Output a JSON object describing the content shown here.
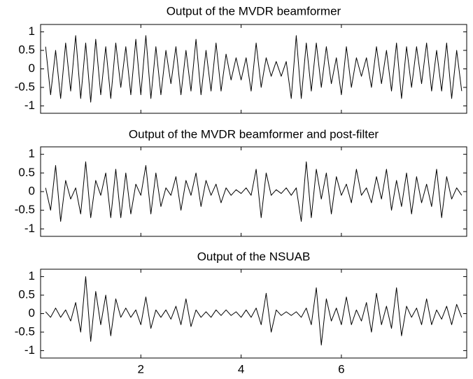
{
  "chart_data": [
    {
      "type": "line",
      "title": "Output of the MVDR beamformer",
      "x": [
        0.1,
        0.2,
        0.3,
        0.4,
        0.5,
        0.6,
        0.7,
        0.8,
        0.9,
        1.0,
        1.1,
        1.2,
        1.3,
        1.4,
        1.5,
        1.6,
        1.7,
        1.8,
        1.9,
        2.0,
        2.1,
        2.2,
        2.3,
        2.4,
        2.5,
        2.6,
        2.7,
        2.8,
        2.9,
        3.0,
        3.1,
        3.2,
        3.3,
        3.4,
        3.5,
        3.6,
        3.7,
        3.8,
        3.9,
        4.0,
        4.1,
        4.2,
        4.3,
        4.4,
        4.5,
        4.6,
        4.7,
        4.8,
        4.9,
        5.0,
        5.1,
        5.2,
        5.3,
        5.4,
        5.5,
        5.6,
        5.7,
        5.8,
        5.9,
        6.0,
        6.1,
        6.2,
        6.3,
        6.4,
        6.5,
        6.6,
        6.7,
        6.8,
        6.9,
        7.0,
        7.1,
        7.2,
        7.3,
        7.4,
        7.5,
        7.6,
        7.7,
        7.8,
        7.9,
        8.0,
        8.1,
        8.2,
        8.3,
        8.4
      ],
      "series": [
        {
          "color": "#000000",
          "values": [
            0.6,
            -0.7,
            0.5,
            -0.8,
            0.7,
            -0.6,
            0.9,
            -0.8,
            0.7,
            -0.9,
            0.8,
            -0.7,
            0.6,
            -0.8,
            0.7,
            -0.5,
            0.6,
            -0.7,
            0.8,
            -0.7,
            0.9,
            -0.8,
            0.6,
            -0.7,
            0.5,
            -0.4,
            0.6,
            -0.7,
            0.5,
            -0.6,
            0.8,
            -0.7,
            0.5,
            -0.6,
            0.7,
            -0.6,
            0.4,
            -0.3,
            0.3,
            -0.3,
            0.3,
            -0.6,
            0.7,
            -0.5,
            0.3,
            -0.2,
            0.2,
            -0.2,
            0.2,
            -0.8,
            0.9,
            -0.8,
            0.7,
            -0.6,
            0.7,
            -0.5,
            0.6,
            -0.4,
            0.3,
            -0.7,
            0.6,
            -0.5,
            0.3,
            -0.2,
            0.3,
            -0.5,
            0.6,
            -0.4,
            0.5,
            -0.6,
            0.7,
            -0.8,
            0.6,
            -0.5,
            0.6,
            -0.4,
            0.7,
            -0.6,
            0.5,
            -0.6,
            0.7,
            -0.8,
            0.5,
            -0.6
          ]
        }
      ],
      "xlim": [
        0,
        8.5
      ],
      "xticks": [
        2,
        4,
        6
      ],
      "ylim": [
        -1.2,
        1.2
      ],
      "yticks": [
        -1,
        -0.5,
        0,
        0.5,
        1
      ]
    },
    {
      "type": "line",
      "title": "Output of the MVDR beamformer and post-filter",
      "x": [
        0.1,
        0.2,
        0.3,
        0.4,
        0.5,
        0.6,
        0.7,
        0.8,
        0.9,
        1.0,
        1.1,
        1.2,
        1.3,
        1.4,
        1.5,
        1.6,
        1.7,
        1.8,
        1.9,
        2.0,
        2.1,
        2.2,
        2.3,
        2.4,
        2.5,
        2.6,
        2.7,
        2.8,
        2.9,
        3.0,
        3.1,
        3.2,
        3.3,
        3.4,
        3.5,
        3.6,
        3.7,
        3.8,
        3.9,
        4.0,
        4.1,
        4.2,
        4.3,
        4.4,
        4.5,
        4.6,
        4.7,
        4.8,
        4.9,
        5.0,
        5.1,
        5.2,
        5.3,
        5.4,
        5.5,
        5.6,
        5.7,
        5.8,
        5.9,
        6.0,
        6.1,
        6.2,
        6.3,
        6.4,
        6.5,
        6.6,
        6.7,
        6.8,
        6.9,
        7.0,
        7.1,
        7.2,
        7.3,
        7.4,
        7.5,
        7.6,
        7.7,
        7.8,
        7.9,
        8.0,
        8.1,
        8.2,
        8.3,
        8.4
      ],
      "series": [
        {
          "color": "#000000",
          "values": [
            0.1,
            -0.5,
            0.7,
            -0.8,
            0.3,
            -0.2,
            0.1,
            -0.6,
            0.8,
            -0.7,
            0.3,
            -0.1,
            0.5,
            -0.7,
            0.6,
            -0.7,
            0.5,
            -0.6,
            0.2,
            -0.1,
            0.7,
            -0.6,
            0.5,
            -0.4,
            0.1,
            -0.1,
            0.4,
            -0.5,
            0.3,
            -0.1,
            0.5,
            -0.4,
            0.3,
            -0.1,
            0.2,
            -0.3,
            0.1,
            -0.1,
            0.05,
            -0.05,
            0.1,
            -0.1,
            0.6,
            -0.7,
            0.5,
            -0.1,
            0.05,
            -0.05,
            0.1,
            -0.1,
            0.1,
            -0.8,
            0.8,
            -0.7,
            0.6,
            -0.2,
            0.5,
            -0.6,
            0.4,
            -0.1,
            0.2,
            -0.3,
            0.6,
            -0.1,
            0.1,
            -0.3,
            0.4,
            -0.2,
            0.6,
            -0.5,
            0.3,
            -0.4,
            0.5,
            -0.6,
            0.4,
            -0.3,
            0.2,
            -0.4,
            0.6,
            -0.7,
            0.4,
            -0.2,
            0.1,
            -0.1
          ]
        }
      ],
      "xlim": [
        0,
        8.5
      ],
      "xticks": [
        2,
        4,
        6
      ],
      "ylim": [
        -1.2,
        1.2
      ],
      "yticks": [
        -1,
        -0.5,
        0,
        0.5,
        1
      ]
    },
    {
      "type": "line",
      "title": "Output of the NSUAB",
      "x": [
        0.1,
        0.2,
        0.3,
        0.4,
        0.5,
        0.6,
        0.7,
        0.8,
        0.9,
        1.0,
        1.1,
        1.2,
        1.3,
        1.4,
        1.5,
        1.6,
        1.7,
        1.8,
        1.9,
        2.0,
        2.1,
        2.2,
        2.3,
        2.4,
        2.5,
        2.6,
        2.7,
        2.8,
        2.9,
        3.0,
        3.1,
        3.2,
        3.3,
        3.4,
        3.5,
        3.6,
        3.7,
        3.8,
        3.9,
        4.0,
        4.1,
        4.2,
        4.3,
        4.4,
        4.5,
        4.6,
        4.7,
        4.8,
        4.9,
        5.0,
        5.1,
        5.2,
        5.3,
        5.4,
        5.5,
        5.6,
        5.7,
        5.8,
        5.9,
        6.0,
        6.1,
        6.2,
        6.3,
        6.4,
        6.5,
        6.6,
        6.7,
        6.8,
        6.9,
        7.0,
        7.1,
        7.2,
        7.3,
        7.4,
        7.5,
        7.6,
        7.7,
        7.8,
        7.9,
        8.0,
        8.1,
        8.2,
        8.3,
        8.4
      ],
      "series": [
        {
          "color": "#000000",
          "values": [
            0.05,
            -0.1,
            0.15,
            -0.1,
            0.1,
            -0.2,
            0.3,
            -0.5,
            1.0,
            -0.75,
            0.6,
            -0.3,
            0.5,
            -0.6,
            0.4,
            -0.1,
            0.15,
            -0.1,
            0.1,
            -0.3,
            0.45,
            -0.4,
            0.1,
            -0.1,
            0.1,
            -0.15,
            0.2,
            -0.3,
            0.4,
            -0.35,
            0.1,
            -0.1,
            0.05,
            -0.1,
            0.1,
            -0.05,
            0.1,
            -0.05,
            0.05,
            -0.1,
            0.1,
            -0.1,
            0.15,
            -0.3,
            0.55,
            -0.5,
            0.1,
            -0.05,
            0.05,
            -0.05,
            0.05,
            -0.1,
            0.15,
            -0.3,
            0.7,
            -0.85,
            0.4,
            -0.2,
            0.15,
            -0.3,
            0.45,
            -0.3,
            0.1,
            -0.2,
            0.3,
            -0.5,
            0.55,
            -0.3,
            0.2,
            -0.4,
            0.7,
            -0.6,
            0.2,
            -0.1,
            0.15,
            -0.3,
            0.4,
            -0.3,
            0.1,
            -0.15,
            0.2,
            -0.3,
            0.25,
            -0.1
          ]
        }
      ],
      "xlim": [
        0,
        8.5
      ],
      "xticks": [
        2,
        4,
        6
      ],
      "ylim": [
        -1.2,
        1.2
      ],
      "yticks": [
        -1,
        -0.5,
        0,
        0.5,
        1
      ]
    }
  ]
}
